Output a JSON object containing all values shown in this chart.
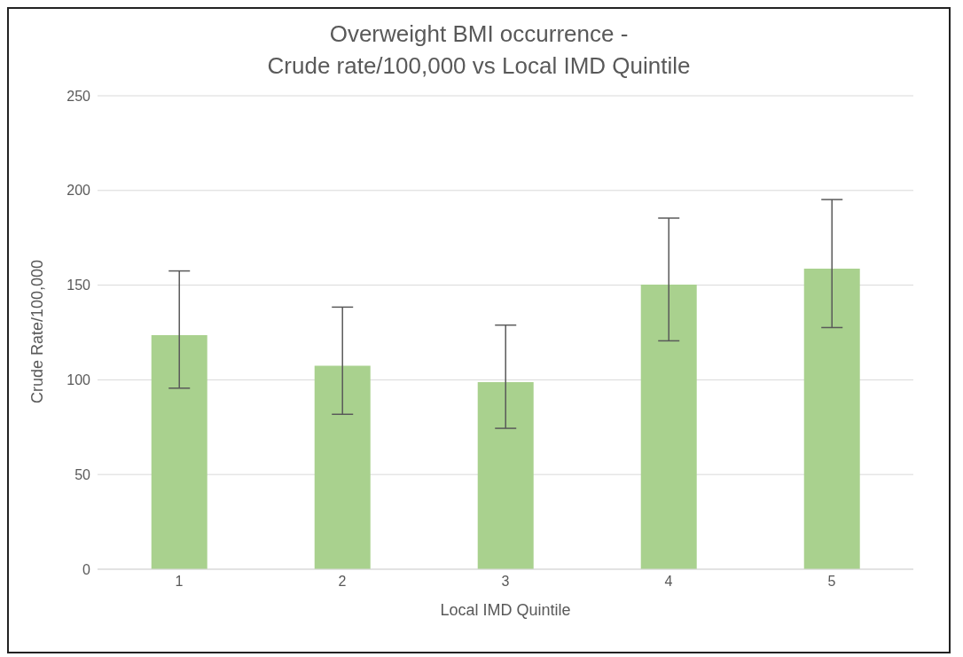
{
  "chart_data": {
    "type": "bar",
    "title": "Overweight BMI occurrence -\nCrude rate/100,000 vs Local IMD Quintile",
    "xlabel": "Local IMD Quintile",
    "ylabel": "Crude Rate/100,000",
    "categories": [
      "1",
      "2",
      "3",
      "4",
      "5"
    ],
    "values": [
      123.6,
      107.4,
      98.8,
      150.3,
      158.7
    ],
    "errors": [
      [
        95.6,
        157.5
      ],
      [
        81.8,
        138.4
      ],
      [
        74.4,
        128.9
      ],
      [
        120.6,
        185.4
      ],
      [
        127.6,
        195.2
      ]
    ],
    "color": "#a9d18e",
    "ylim": [
      0,
      250
    ],
    "yticks": [
      0,
      50,
      100,
      150,
      200,
      250
    ],
    "grid": "y"
  }
}
